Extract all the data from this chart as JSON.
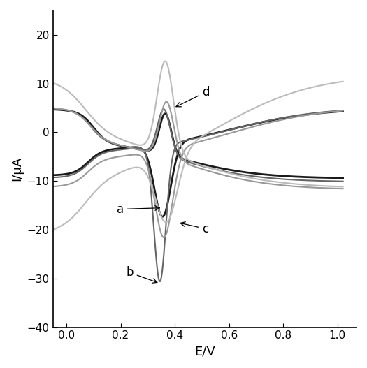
{
  "title": "",
  "xlabel": "E/V",
  "ylabel": "I/μA",
  "xlim": [
    -0.05,
    1.07
  ],
  "ylim": [
    -40,
    25
  ],
  "xticks": [
    0.0,
    0.2,
    0.4,
    0.6,
    0.8,
    1.0
  ],
  "yticks": [
    -40,
    -30,
    -20,
    -10,
    0,
    10,
    20
  ],
  "background_color": "#ffffff",
  "curve_colors": {
    "a": "#1a1a1a",
    "b": "#666666",
    "c": "#999999",
    "d": "#bbbbbb"
  },
  "linewidths": {
    "a": 2.0,
    "b": 1.5,
    "c": 1.5,
    "d": 1.5
  }
}
